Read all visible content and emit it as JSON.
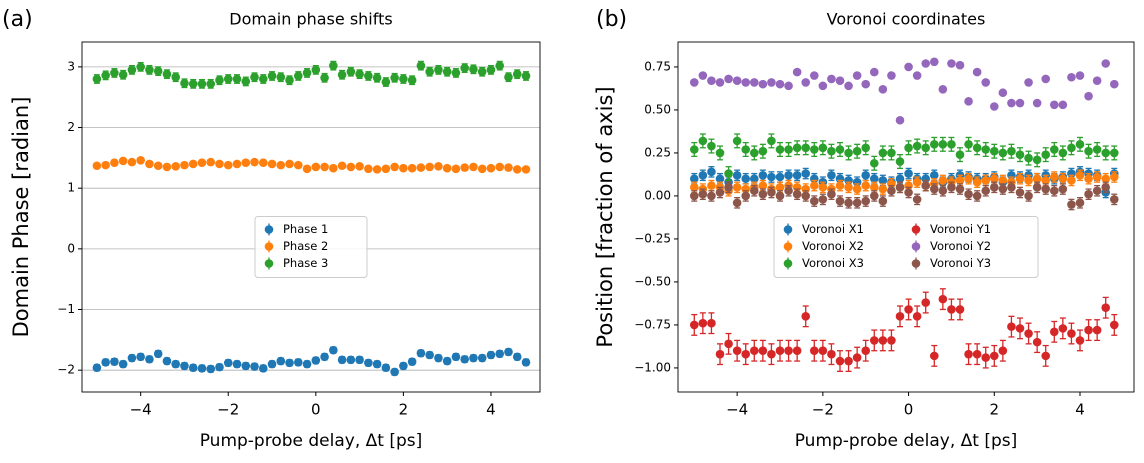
{
  "chart_data": [
    {
      "type": "errorbar",
      "panel_label": "(a)",
      "title": "Domain phase shifts",
      "x_label": "Pump-probe delay, Δt [ps]",
      "y_label": "Domain Phase [radian]",
      "xlim": [
        -5.34,
        5.12
      ],
      "ylim": [
        -2.36,
        3.41
      ],
      "xticks": [
        {
          "value": -4,
          "label": "−4"
        },
        {
          "value": -2,
          "label": "−2"
        },
        0,
        2,
        4
      ],
      "yticks": [
        {
          "value": -2,
          "label": "−2"
        },
        {
          "value": -1,
          "label": "−1"
        },
        0,
        1,
        2,
        3
      ],
      "grid": "y",
      "legend": "center",
      "legend_columns": 1,
      "x": [
        -5,
        -4.8,
        -4.6,
        -4.4,
        -4.2,
        -4,
        -3.8,
        -3.6,
        -3.4,
        -3.2,
        -3,
        -2.8,
        -2.6,
        -2.4,
        -2.2,
        -2,
        -1.8,
        -1.6,
        -1.4,
        -1.2,
        -1,
        -0.8,
        -0.6,
        -0.4,
        -0.2,
        0,
        0.2,
        0.4,
        0.6,
        0.8,
        1,
        1.2,
        1.4,
        1.6,
        1.8,
        2,
        2.2,
        2.4,
        2.6,
        2.8,
        3,
        3.2,
        3.4,
        3.6,
        3.8,
        4,
        4.2,
        4.4,
        4.6,
        4.8
      ],
      "series": [
        {
          "name": "Phase 1",
          "color": "#1f77b4",
          "error": 0.05,
          "values": [
            -1.96,
            -1.87,
            -1.86,
            -1.9,
            -1.8,
            -1.78,
            -1.82,
            -1.73,
            -1.85,
            -1.9,
            -1.93,
            -1.96,
            -1.97,
            -1.98,
            -1.95,
            -1.88,
            -1.9,
            -1.93,
            -1.94,
            -1.97,
            -1.9,
            -1.85,
            -1.88,
            -1.87,
            -1.9,
            -1.84,
            -1.78,
            -1.67,
            -1.83,
            -1.83,
            -1.83,
            -1.88,
            -1.9,
            -1.96,
            -2.03,
            -1.93,
            -1.86,
            -1.72,
            -1.75,
            -1.8,
            -1.85,
            -1.78,
            -1.82,
            -1.8,
            -1.8,
            -1.75,
            -1.73,
            -1.7,
            -1.78,
            -1.87
          ]
        },
        {
          "name": "Phase 2",
          "color": "#ff7f0e",
          "error": 0.03,
          "values": [
            1.37,
            1.38,
            1.42,
            1.45,
            1.43,
            1.46,
            1.4,
            1.37,
            1.35,
            1.36,
            1.38,
            1.4,
            1.42,
            1.43,
            1.4,
            1.38,
            1.4,
            1.42,
            1.43,
            1.42,
            1.4,
            1.38,
            1.4,
            1.38,
            1.32,
            1.35,
            1.35,
            1.33,
            1.37,
            1.35,
            1.36,
            1.32,
            1.31,
            1.32,
            1.35,
            1.33,
            1.33,
            1.34,
            1.35,
            1.36,
            1.33,
            1.32,
            1.34,
            1.35,
            1.32,
            1.33,
            1.35,
            1.34,
            1.31,
            1.31
          ]
        },
        {
          "name": "Phase 3",
          "color": "#2ca02c",
          "error": 0.07,
          "values": [
            2.8,
            2.86,
            2.9,
            2.87,
            2.95,
            3.0,
            2.95,
            2.93,
            2.88,
            2.83,
            2.73,
            2.72,
            2.72,
            2.72,
            2.78,
            2.8,
            2.8,
            2.76,
            2.83,
            2.8,
            2.85,
            2.83,
            2.78,
            2.85,
            2.9,
            2.95,
            2.82,
            3.02,
            2.87,
            2.92,
            2.88,
            2.85,
            2.82,
            2.75,
            2.82,
            2.8,
            2.78,
            3.02,
            2.92,
            2.95,
            2.92,
            2.9,
            2.98,
            2.96,
            2.92,
            2.95,
            3.02,
            2.83,
            2.88,
            2.85
          ]
        }
      ]
    },
    {
      "type": "errorbar",
      "panel_label": "(b)",
      "title": "Voronoi coordinates",
      "x_label": "Pump-probe delay, Δt [ps]",
      "y_label": "Position [fraction of axis]",
      "xlim": [
        -5.38,
        5.26
      ],
      "ylim": [
        -1.14,
        0.895
      ],
      "xticks": [
        {
          "value": -4,
          "label": "−4"
        },
        {
          "value": -2,
          "label": "−2"
        },
        0,
        2,
        4
      ],
      "yticks": [
        {
          "value": -1,
          "label": "−1.00"
        },
        {
          "value": -0.75,
          "label": "−0.75"
        },
        {
          "value": -0.5,
          "label": "−0.50"
        },
        {
          "value": -0.25,
          "label": "−0.25"
        },
        {
          "value": 0,
          "label": "0.00"
        },
        {
          "value": 0.25,
          "label": "0.25"
        },
        {
          "value": 0.5,
          "label": "0.50"
        },
        {
          "value": 0.75,
          "label": "0.75"
        }
      ],
      "grid": "none",
      "legend": "center",
      "legend_columns": 2,
      "x": [
        -5,
        -4.8,
        -4.6,
        -4.4,
        -4.2,
        -4,
        -3.8,
        -3.6,
        -3.4,
        -3.2,
        -3,
        -2.8,
        -2.6,
        -2.4,
        -2.2,
        -2,
        -1.8,
        -1.6,
        -1.4,
        -1.2,
        -1,
        -0.8,
        -0.6,
        -0.4,
        -0.2,
        0,
        0.2,
        0.4,
        0.6,
        0.8,
        1,
        1.2,
        1.4,
        1.6,
        1.8,
        2,
        2.2,
        2.4,
        2.6,
        2.8,
        3,
        3.2,
        3.4,
        3.6,
        3.8,
        4,
        4.2,
        4.4,
        4.6,
        4.8
      ],
      "series": [
        {
          "name": "Voronoi X1",
          "color": "#1f77b4",
          "error": 0.03,
          "values": [
            0.1,
            0.12,
            0.14,
            0.1,
            0.08,
            0.12,
            0.1,
            0.1,
            0.12,
            0.11,
            0.11,
            0.12,
            0.12,
            0.13,
            0.1,
            0.08,
            0.12,
            0.1,
            0.09,
            0.08,
            0.12,
            0.1,
            0.09,
            0.08,
            0.1,
            0.13,
            0.1,
            0.1,
            0.12,
            0.08,
            0.1,
            0.12,
            0.11,
            0.1,
            0.1,
            0.11,
            0.08,
            0.12,
            0.11,
            0.12,
            0.1,
            0.12,
            0.1,
            0.11,
            0.13,
            0.14,
            0.13,
            0.12,
            0.02,
            0.13
          ]
        },
        {
          "name": "Voronoi X2",
          "color": "#ff7f0e",
          "error": 0.03,
          "values": [
            0.05,
            0.04,
            0.06,
            0.05,
            0.03,
            0.05,
            0.04,
            0.05,
            0.06,
            0.04,
            0.05,
            0.06,
            0.05,
            0.04,
            0.06,
            0.05,
            0.04,
            0.06,
            0.05,
            0.04,
            0.06,
            0.05,
            0.04,
            0.07,
            0.05,
            0.06,
            0.08,
            0.06,
            0.07,
            0.09,
            0.08,
            0.09,
            0.1,
            0.08,
            0.09,
            0.1,
            0.09,
            0.08,
            0.1,
            0.09,
            0.1,
            0.09,
            0.11,
            0.1,
            0.09,
            0.12,
            0.1,
            0.11,
            0.1,
            0.11
          ]
        },
        {
          "name": "Voronoi X3",
          "color": "#2ca02c",
          "error": 0.04,
          "values": [
            0.27,
            0.32,
            0.29,
            0.25,
            0.13,
            0.32,
            0.27,
            0.25,
            0.26,
            0.32,
            0.27,
            0.27,
            0.28,
            0.28,
            0.27,
            0.28,
            0.26,
            0.27,
            0.25,
            0.26,
            0.28,
            0.19,
            0.25,
            0.25,
            0.2,
            0.28,
            0.29,
            0.28,
            0.3,
            0.3,
            0.3,
            0.24,
            0.3,
            0.28,
            0.27,
            0.26,
            0.25,
            0.26,
            0.24,
            0.22,
            0.21,
            0.24,
            0.27,
            0.25,
            0.28,
            0.3,
            0.26,
            0.27,
            0.25,
            0.25
          ]
        },
        {
          "name": "Voronoi Y1",
          "color": "#d62728",
          "error": 0.06,
          "values": [
            -0.75,
            -0.74,
            -0.74,
            -0.92,
            -0.86,
            -0.9,
            -0.92,
            -0.9,
            -0.9,
            -0.92,
            -0.9,
            -0.9,
            -0.9,
            -0.7,
            -0.9,
            -0.9,
            -0.92,
            -0.96,
            -0.96,
            -0.94,
            -0.9,
            -0.84,
            -0.84,
            -0.84,
            -0.7,
            -0.66,
            -0.7,
            -0.62,
            -0.93,
            -0.6,
            -0.66,
            -0.66,
            -0.92,
            -0.92,
            -0.94,
            -0.93,
            -0.9,
            -0.76,
            -0.77,
            -0.8,
            -0.85,
            -0.93,
            -0.79,
            -0.77,
            -0.8,
            -0.84,
            -0.78,
            -0.78,
            -0.65,
            -0.75
          ]
        },
        {
          "name": "Voronoi Y2",
          "color": "#9467bd",
          "error": 0.01,
          "values": [
            0.66,
            0.7,
            0.67,
            0.66,
            0.68,
            0.67,
            0.66,
            0.66,
            0.65,
            0.66,
            0.65,
            0.64,
            0.72,
            0.66,
            0.7,
            0.64,
            0.68,
            0.67,
            0.64,
            0.7,
            0.65,
            0.72,
            0.62,
            0.7,
            0.44,
            0.75,
            0.7,
            0.77,
            0.78,
            0.62,
            0.77,
            0.76,
            0.55,
            0.72,
            0.66,
            0.52,
            0.6,
            0.54,
            0.54,
            0.66,
            0.54,
            0.68,
            0.53,
            0.53,
            0.69,
            0.7,
            0.58,
            0.67,
            0.77,
            0.65
          ]
        },
        {
          "name": "Voronoi Y3",
          "color": "#8c564b",
          "error": 0.03,
          "values": [
            0.0,
            0.01,
            0.0,
            0.02,
            0.05,
            -0.04,
            0.0,
            0.03,
            0.01,
            0.02,
            0.0,
            0.03,
            0.01,
            0.0,
            -0.03,
            -0.02,
            0.01,
            -0.03,
            -0.04,
            -0.04,
            -0.03,
            0.0,
            -0.03,
            0.03,
            0.05,
            0.02,
            -0.02,
            0.06,
            0.04,
            0.03,
            0.05,
            0.04,
            0.01,
            0.0,
            0.03,
            0.05,
            0.04,
            0.05,
            0.02,
            0.0,
            0.05,
            0.04,
            0.03,
            0.04,
            -0.05,
            -0.04,
            0.01,
            0.03,
            0.05,
            -0.02
          ]
        }
      ]
    }
  ]
}
